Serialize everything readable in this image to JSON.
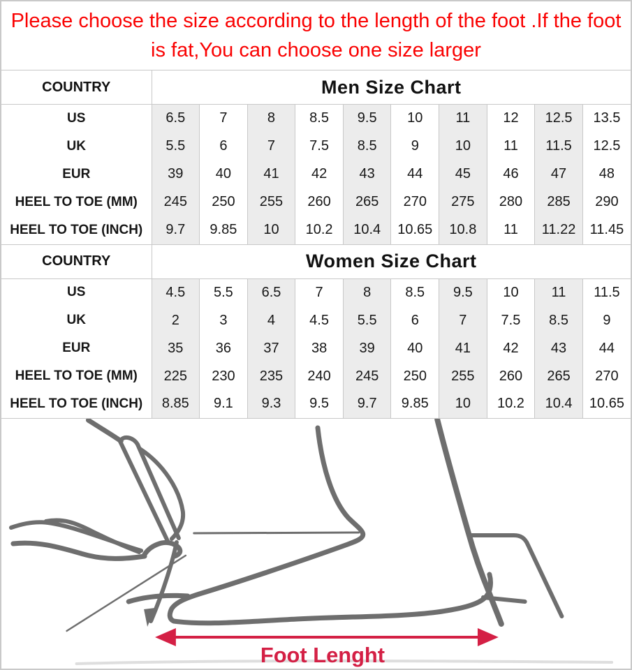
{
  "banner": {
    "line1": "Please choose the size according to the length of the foot .If the foot",
    "line2": "is fat,You can choose one size larger"
  },
  "tables": [
    {
      "corner_label": "COUNTRY",
      "title": "Men Size Chart",
      "rows": [
        {
          "label": "US",
          "values": [
            "6.5",
            "7",
            "8",
            "8.5",
            "9.5",
            "10",
            "11",
            "12",
            "12.5",
            "13.5"
          ]
        },
        {
          "label": "UK",
          "values": [
            "5.5",
            "6",
            "7",
            "7.5",
            "8.5",
            "9",
            "10",
            "11",
            "11.5",
            "12.5"
          ]
        },
        {
          "label": "EUR",
          "values": [
            "39",
            "40",
            "41",
            "42",
            "43",
            "44",
            "45",
            "46",
            "47",
            "48"
          ]
        },
        {
          "label": "HEEL TO TOE (MM)",
          "values": [
            "245",
            "250",
            "255",
            "260",
            "265",
            "270",
            "275",
            "280",
            "285",
            "290"
          ]
        },
        {
          "label": "HEEL TO TOE (INCH)",
          "values": [
            "9.7",
            "9.85",
            "10",
            "10.2",
            "10.4",
            "10.65",
            "10.8",
            "11",
            "11.22",
            "11.45"
          ]
        }
      ]
    },
    {
      "corner_label": "COUNTRY",
      "title": "Women Size Chart",
      "rows": [
        {
          "label": "US",
          "values": [
            "4.5",
            "5.5",
            "6.5",
            "7",
            "8",
            "8.5",
            "9.5",
            "10",
            "11",
            "11.5"
          ]
        },
        {
          "label": "UK",
          "values": [
            "2",
            "3",
            "4",
            "4.5",
            "5.5",
            "6",
            "7",
            "7.5",
            "8.5",
            "9"
          ]
        },
        {
          "label": "EUR",
          "values": [
            "35",
            "36",
            "37",
            "38",
            "39",
            "40",
            "41",
            "42",
            "43",
            "44"
          ]
        },
        {
          "label": "HEEL TO TOE (MM)",
          "values": [
            "225",
            "230",
            "235",
            "240",
            "245",
            "250",
            "255",
            "260",
            "265",
            "270"
          ]
        },
        {
          "label": "HEEL TO TOE (INCH)",
          "values": [
            "8.85",
            "9.1",
            "9.3",
            "9.5",
            "9.7",
            "9.85",
            "10",
            "10.2",
            "10.4",
            "10.65"
          ]
        }
      ]
    }
  ],
  "diagram": {
    "caption": "Foot Lenght"
  },
  "colors": {
    "notice_red": "#fa0202",
    "arrow_crimson": "#d42045",
    "sketch_gray": "#6e6e6e",
    "table_border": "#c8c8c8",
    "shaded_cell": "#ececec"
  }
}
